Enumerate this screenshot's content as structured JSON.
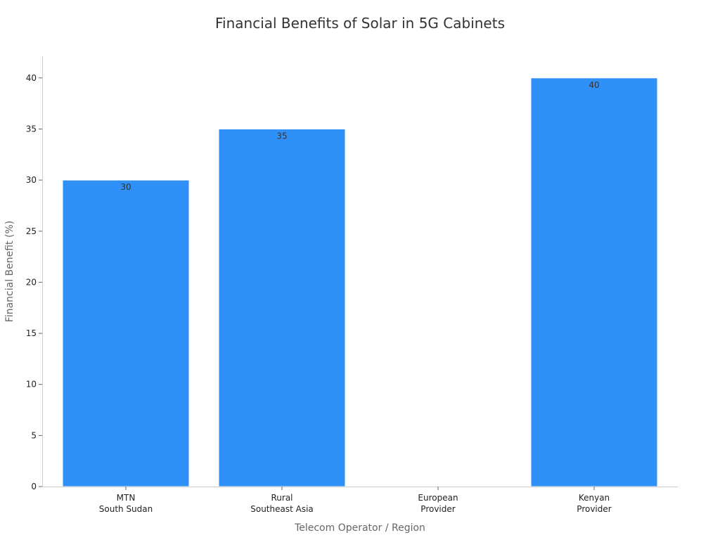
{
  "chart_data": {
    "type": "bar",
    "title": "Financial Benefits of Solar in 5G Cabinets",
    "xlabel": "Telecom Operator / Region",
    "ylabel": "Financial Benefit (%)",
    "categories": [
      [
        "MTN",
        "South Sudan"
      ],
      [
        "Rural",
        "Southeast Asia"
      ],
      [
        "European",
        "Provider"
      ],
      [
        "Kenyan",
        "Provider"
      ]
    ],
    "values": [
      30,
      35,
      null,
      40
    ],
    "data_labels": [
      "30",
      "35",
      "",
      "40"
    ],
    "ylim": [
      0,
      42
    ],
    "yticks": [
      0,
      5,
      10,
      15,
      20,
      25,
      30,
      35,
      40
    ],
    "grid": false,
    "legend": "none",
    "colors": {
      "bar": "#2f91f7",
      "bar_edge": "#ffffff"
    }
  }
}
